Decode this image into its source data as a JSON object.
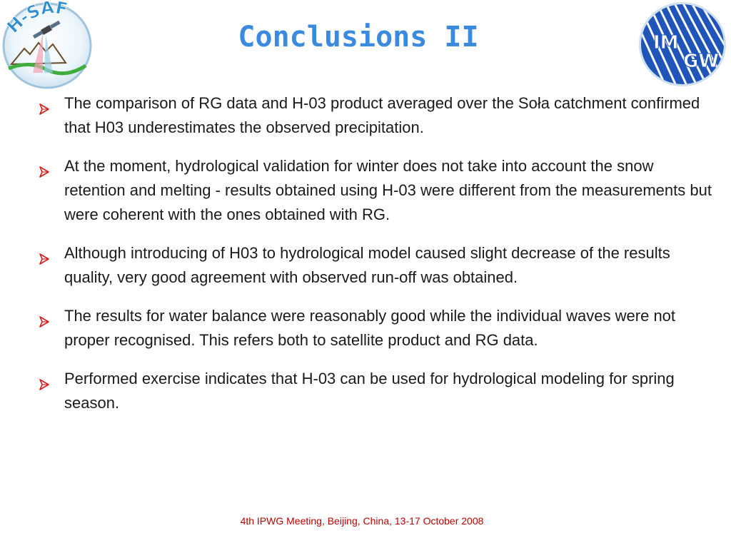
{
  "slide": {
    "title": "Conclusions II",
    "footer": "4th IPWG Meeting, Beijing, China, 13-17 October 2008"
  },
  "logos": {
    "left": {
      "icon": "h-saf-logo",
      "text": "H-SAF"
    },
    "right": {
      "icon": "imgw-logo",
      "text": "IMGW"
    }
  },
  "colors": {
    "title": "#3a8be0",
    "bullet_arrow": "#d42020",
    "footer": "#c00000",
    "body_text": "#1a1a1a"
  },
  "bullets": [
    {
      "icon": "arrow-bullet-icon",
      "text": "The comparison of RG data and H-03 product averaged over the Soła catchment  confirmed that H03 underestimates the observed precipitation."
    },
    {
      "icon": "arrow-bullet-icon",
      "text": "At the moment, hydrological validation for winter does not take into account the snow retention and melting - results obtained using H-03 were different from the measurements but were coherent with the ones obtained with RG."
    },
    {
      "icon": "arrow-bullet-icon",
      "text": "Although introducing of H03 to hydrological model caused slight decrease of the results quality, very good agreement with observed run-off was obtained."
    },
    {
      "icon": "arrow-bullet-icon",
      "text": "The results for water balance were reasonably good while the individual waves were not proper recognised. This refers both to satellite product and RG data."
    },
    {
      "icon": "arrow-bullet-icon",
      "text": "Performed exercise indicates that H-03 can be used for hydrological modeling for spring season."
    }
  ]
}
